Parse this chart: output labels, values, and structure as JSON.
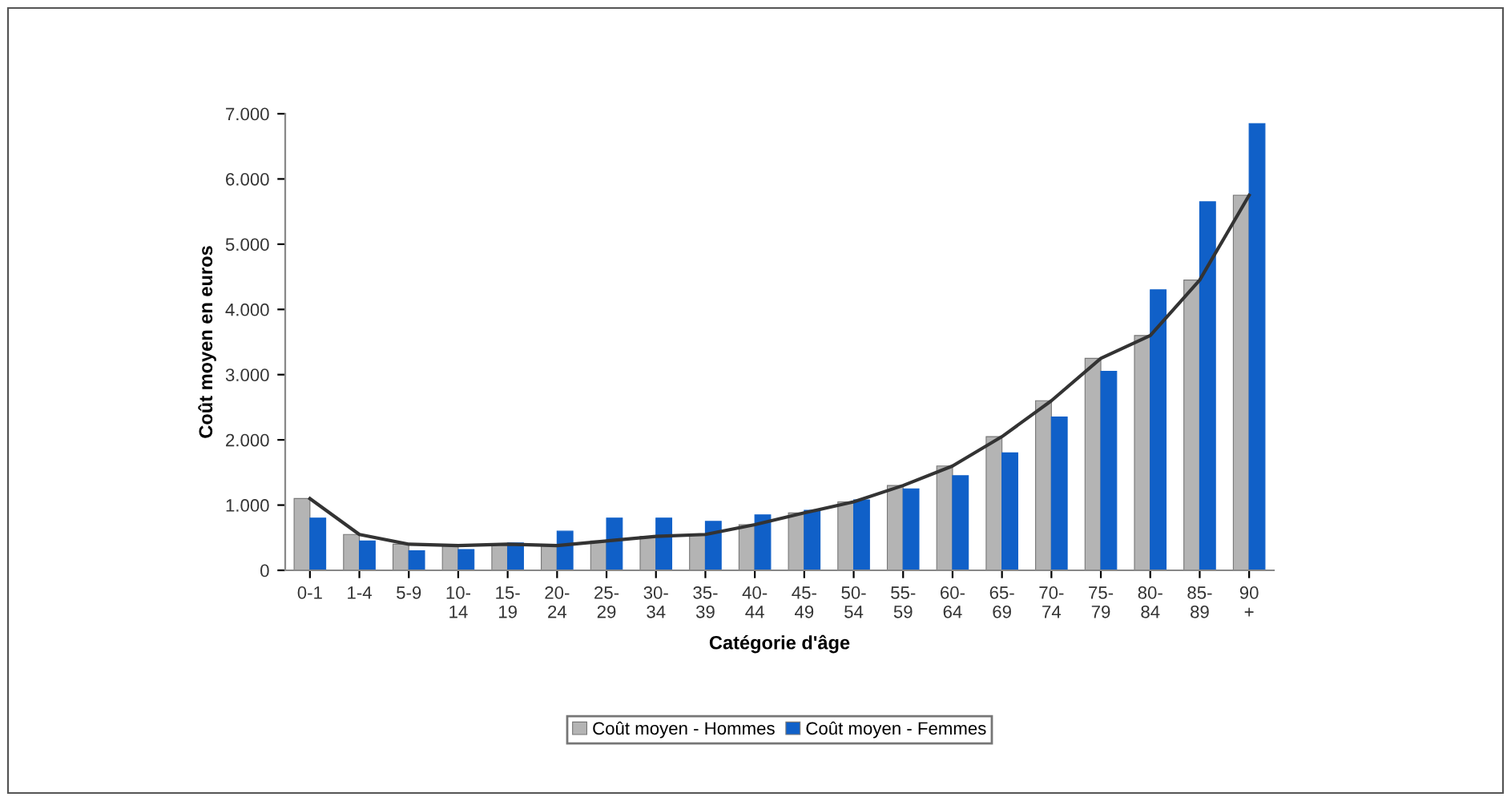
{
  "chart_data": {
    "type": "bar",
    "xlabel": "Catégorie d'âge",
    "ylabel": "Coût moyen en euros",
    "categories": [
      "0-1",
      "1-4",
      "5-9",
      "10-\n14",
      "15-\n19",
      "20-\n24",
      "25-\n29",
      "30-\n34",
      "35-\n39",
      "40-\n44",
      "45-\n49",
      "50-\n54",
      "55-\n59",
      "60-\n64",
      "65-\n69",
      "70-\n74",
      "75-\n79",
      "80-\n84",
      "85-\n89",
      "90\n+"
    ],
    "series": [
      {
        "name": "Coût moyen - Hommes",
        "color": "#b4b4b4",
        "values": [
          1100,
          550,
          400,
          380,
          400,
          380,
          450,
          520,
          550,
          700,
          880,
          1050,
          1300,
          1600,
          2050,
          2600,
          3250,
          3600,
          4450,
          5750
        ]
      },
      {
        "name": "Coût moyen - Femmes",
        "color": "#1060c8",
        "values": [
          800,
          450,
          300,
          320,
          420,
          600,
          800,
          800,
          750,
          850,
          920,
          1080,
          1250,
          1450,
          1800,
          2350,
          3050,
          4300,
          5650,
          6850
        ]
      },
      {
        "type": "line",
        "color": "#333333",
        "values": [
          1100,
          550,
          400,
          380,
          400,
          380,
          450,
          520,
          550,
          700,
          880,
          1050,
          1300,
          1600,
          2050,
          2600,
          3250,
          3600,
          4450,
          5750
        ]
      }
    ],
    "ylim": [
      0,
      7000
    ],
    "yticks": [
      0,
      {
        "value": 1000,
        "label": "1.000"
      },
      {
        "value": 2000,
        "label": "2.000"
      },
      {
        "value": 3000,
        "label": "3.000"
      },
      {
        "value": 4000,
        "label": "4.000"
      },
      {
        "value": 5000,
        "label": "5.000"
      },
      {
        "value": 6000,
        "label": "6.000"
      },
      {
        "value": 7000,
        "label": "7.000"
      }
    ],
    "legend": "bottom",
    "grid": false
  }
}
